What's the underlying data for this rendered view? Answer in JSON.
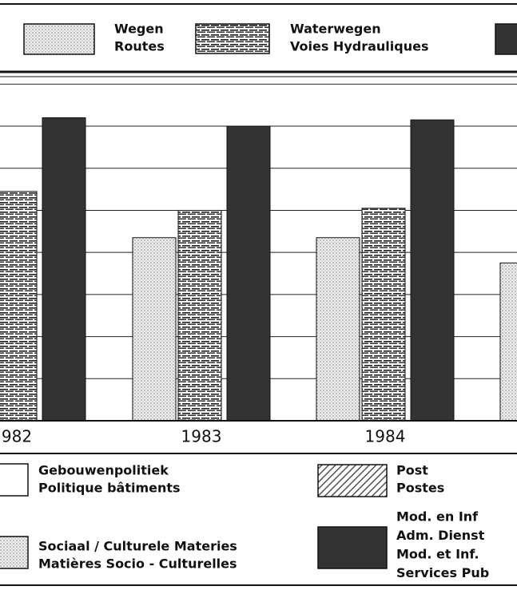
{
  "chart_data": {
    "type": "bar",
    "categories": [
      "982",
      "1983",
      "1984",
      null
    ],
    "series": [
      {
        "labels": [
          "Wegen",
          "Routes"
        ],
        "color": "#e8e8e8",
        "pattern": "dots",
        "values": [
          null,
          4.35,
          4.35,
          3.75
        ]
      },
      {
        "labels": [
          "Waterwegen",
          "Voies Hydrauliques"
        ],
        "color": "#ffffff",
        "pattern": "bricks",
        "values": [
          5.45,
          5.0,
          5.05,
          null
        ]
      },
      {
        "labels": [],
        "color": "#333333",
        "pattern": "solid",
        "values": [
          7.2,
          7.0,
          7.15,
          null
        ]
      }
    ],
    "ylim": [
      0,
      8.5
    ],
    "yticks": [
      1,
      2,
      3,
      4,
      5,
      6,
      7,
      8
    ],
    "grid": true,
    "legend_extra": [
      {
        "labels": [
          "Gebouwenpolitiek",
          "Politique bâtiments"
        ]
      },
      {
        "labels": [
          "Post",
          "Postes"
        ]
      },
      {
        "labels": [
          "Sociaal / Culturele Materies",
          "Matières Socio - Culturelles"
        ]
      },
      {
        "labels": [
          "Mod. en Inf",
          "Adm. Dienst",
          "Mod. et Inf.",
          "Services Pub"
        ]
      }
    ]
  }
}
